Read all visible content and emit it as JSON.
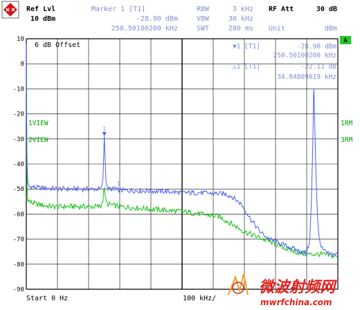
{
  "colors": {
    "trace1": "#4a5cf0",
    "trace2": "#10c010",
    "header_text": "#7f8fcf",
    "grid": "#000000",
    "watermark_red": "#e0201c",
    "logo_red": "#d8141c",
    "badge_green": "#22cc22"
  },
  "header": {
    "ref_label": "Ref Lvl",
    "ref_value": "10 dBm",
    "marker_title": "Marker 1 [T1]",
    "marker_level": "-28.90 dBm",
    "marker_freq": "250.50100200 kHz",
    "rbw_label": "RBW",
    "rbw_value": "3 kHz",
    "vbw_label": "VBW",
    "vbw_value": "30 kHz",
    "swt_label": "SWT",
    "swt_value": "280 ms",
    "rfatt_label": "RF Att",
    "rfatt_value": "30 dB",
    "unit_label": "Unit",
    "unit_value": "dBm"
  },
  "plot": {
    "offset_text": "6 dB Offset",
    "marker1_label": "▼1 [T1]",
    "marker1_level": "-28.90 dBm",
    "marker1_freq": "250.50100200 kHz",
    "delta_label": "△1 [T1]",
    "delta_level": "-22.11 dB",
    "delta_freq": "34.04809619 kHz",
    "trace1_left": "1VIEW",
    "trace2_left": "2VIEW",
    "trace1_right": "1RM",
    "trace2_right": "3RM",
    "badge": "A",
    "marker_num": "1",
    "delta_num": "1"
  },
  "y_ticks": [
    "10",
    "0",
    "-10",
    "-20",
    "-30",
    "-40",
    "-50",
    "-60",
    "-70",
    "-80",
    "-90"
  ],
  "footer": {
    "start": "Start 0 Hz",
    "center": "100 kHz/"
  },
  "watermark": {
    "chinese": "微波射频网",
    "url": "mwrfchina.com"
  },
  "chart_data": {
    "type": "line",
    "xlabel": "",
    "ylabel": "",
    "xlim_khz": [
      0,
      1000
    ],
    "ylim_dbm": [
      -90,
      10
    ],
    "x_step_khz": 100,
    "grid": true,
    "series": [
      {
        "name": "1VIEW",
        "color": "#4a5cf0",
        "points": [
          [
            0,
            8
          ],
          [
            1.2,
            -20
          ],
          [
            2.5,
            -40
          ],
          [
            4,
            -46
          ],
          [
            6,
            -48
          ],
          [
            10,
            -49
          ],
          [
            20,
            -49.2
          ],
          [
            40,
            -49.5
          ],
          [
            80,
            -49.8
          ],
          [
            150,
            -50
          ],
          [
            200,
            -50
          ],
          [
            240,
            -50
          ],
          [
            246,
            -46
          ],
          [
            248,
            -38
          ],
          [
            250.5,
            -28.9
          ],
          [
            253,
            -38
          ],
          [
            256,
            -46
          ],
          [
            260,
            -50
          ],
          [
            284,
            -50
          ],
          [
            300,
            -50.5
          ],
          [
            400,
            -50.8
          ],
          [
            450,
            -51
          ],
          [
            500,
            -51.5
          ],
          [
            560,
            -51.5
          ],
          [
            640,
            -52
          ],
          [
            660,
            -53
          ],
          [
            690,
            -56
          ],
          [
            720,
            -62
          ],
          [
            750,
            -67
          ],
          [
            780,
            -70
          ],
          [
            820,
            -72
          ],
          [
            860,
            -74
          ],
          [
            880,
            -75
          ],
          [
            900,
            -75.5
          ],
          [
            910,
            -70
          ],
          [
            915,
            -55
          ],
          [
            920,
            -30
          ],
          [
            922,
            -13
          ],
          [
            923,
            -10
          ],
          [
            925,
            -20
          ],
          [
            930,
            -45
          ],
          [
            935,
            -62
          ],
          [
            940,
            -70
          ],
          [
            950,
            -74
          ],
          [
            970,
            -76
          ],
          [
            1000,
            -76
          ]
        ]
      },
      {
        "name": "2VIEW",
        "color": "#10c010",
        "points": [
          [
            0,
            -4
          ],
          [
            1.2,
            -35
          ],
          [
            2.5,
            -50
          ],
          [
            5,
            -54
          ],
          [
            10,
            -55
          ],
          [
            30,
            -56
          ],
          [
            80,
            -57
          ],
          [
            150,
            -57
          ],
          [
            240,
            -57
          ],
          [
            246,
            -54
          ],
          [
            248,
            -51
          ],
          [
            250.5,
            -50
          ],
          [
            253,
            -52
          ],
          [
            256,
            -55
          ],
          [
            260,
            -56
          ],
          [
            300,
            -57
          ],
          [
            400,
            -58
          ],
          [
            500,
            -59
          ],
          [
            560,
            -60
          ],
          [
            620,
            -61
          ],
          [
            660,
            -64
          ],
          [
            700,
            -67
          ],
          [
            740,
            -69
          ],
          [
            780,
            -71
          ],
          [
            820,
            -73
          ],
          [
            860,
            -75
          ],
          [
            900,
            -76
          ],
          [
            940,
            -76
          ],
          [
            970,
            -76.5
          ],
          [
            1000,
            -77
          ]
        ]
      }
    ],
    "markers": [
      {
        "label": "1 [T1]",
        "x_khz": 250.501002,
        "y_dbm": -28.9
      },
      {
        "label": "Δ 1 [T1]",
        "x_khz": 34.04809619,
        "y_db": -22.11
      }
    ]
  }
}
